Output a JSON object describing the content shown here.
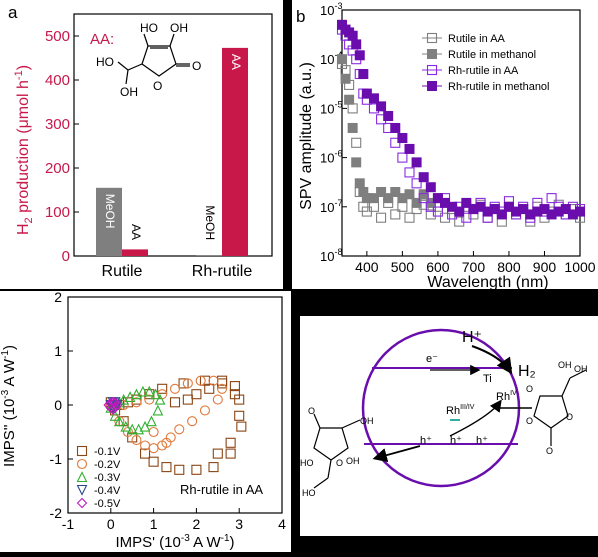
{
  "colors": {
    "rutile_gray": "#7f7f7f",
    "rh_crimson": "#c8184a",
    "purple": "#6a0dad",
    "series_neg01": "#8b4513",
    "series_neg02": "#e0783a",
    "series_neg03": "#2fb02f",
    "series_neg04": "#2a4a8a",
    "series_neg05": "#c018c0"
  },
  "panel_a": {
    "letter": "a",
    "aa_label": "AA:",
    "ylabel_pre": "H",
    "ylabel_sub": "2",
    "ylabel_post": " production (μmol h",
    "ylabel_sup": "-1",
    "ylabel_end": ")",
    "molecule_labels": [
      "HO",
      "OH",
      "HO",
      "OH",
      "O",
      "O"
    ]
  },
  "panel_b": {
    "letter": "b",
    "xlabel": "Wavelength (nm)",
    "ylabel": "SPV amplitude (a.u.)"
  },
  "panel_c": {
    "xlabel_pre": "IMPS' (10",
    "xlabel_sup": "-3",
    "xlabel_post": " A W",
    "xlabel_sup2": "-1",
    "xlabel_end": ")",
    "ylabel_pre": "IMPS'' (10",
    "ylabel_sup": "-3",
    "ylabel_post": " A W",
    "ylabel_sup2": "-1",
    "ylabel_end": ")",
    "annotation": "Rh-rutile in AA"
  },
  "panel_d": {
    "labels": {
      "hplus_top": "H⁺",
      "h2": "H₂",
      "electron": "e⁻",
      "ti": "Ti",
      "rh_mid": "Rh",
      "rh_mid_sup": "III/IV",
      "rh_iv": "Rh",
      "rh_iv_sup": "IV",
      "hole1": "h⁺",
      "hole2": "h⁺",
      "hole3": "h⁺",
      "mol_left": [
        "O",
        "O",
        "OH",
        "OH",
        "HO",
        "HO"
      ],
      "mol_right": [
        "OH",
        "OH",
        "O",
        "O",
        "O",
        "O"
      ]
    }
  },
  "chart_data": [
    {
      "id": "a",
      "type": "bar",
      "categories": [
        "Rutile",
        "Rh-rutile"
      ],
      "series": [
        {
          "name": "MeOH",
          "values": [
            155,
            2
          ]
        },
        {
          "name": "AA",
          "values": [
            15,
            473
          ]
        }
      ],
      "bar_labels": [
        "MeOH",
        "AA",
        "MeOH",
        "AA"
      ],
      "ylim": [
        0,
        550
      ],
      "yticks": [
        0,
        100,
        200,
        300,
        400,
        500
      ]
    },
    {
      "id": "b",
      "type": "scatter",
      "yscale": "log",
      "xlabel": "Wavelength (nm)",
      "ylabel": "SPV amplitude (a.u.)",
      "xlim": [
        330,
        1000
      ],
      "ylim": [
        1e-08,
        0.001
      ],
      "xticks": [
        400,
        500,
        600,
        700,
        800,
        900,
        1000
      ],
      "yticks": [
        1e-08,
        1e-07,
        1e-06,
        1e-05,
        0.0001,
        0.001
      ],
      "ytick_labels": [
        "10-8",
        "10-7",
        "10-6",
        "10-5",
        "10-4",
        "10-3"
      ],
      "legend": "top-right",
      "series": [
        {
          "name": "Rutile in AA",
          "marker": "open-square",
          "color": "#7f7f7f",
          "x": [
            330,
            340,
            350,
            360,
            370,
            380,
            390,
            400,
            420,
            440,
            460,
            480,
            500,
            520,
            540,
            560,
            580,
            600,
            620,
            640,
            660,
            680,
            700,
            720,
            740,
            760,
            780,
            800,
            820,
            840,
            860,
            880,
            900,
            920,
            940,
            960,
            980,
            1000
          ],
          "y": [
            8e-05,
            6e-05,
            3e-05,
            1e-05,
            2e-06,
            2e-07,
            1e-07,
            8e-08,
            1e-07,
            6e-08,
            1.2e-07,
            7e-08,
            1e-07,
            6e-08,
            9e-08,
            1.1e-07,
            7e-08,
            1e-07,
            6e-08,
            9e-08,
            5e-08,
            1e-07,
            7e-08,
            1.1e-07,
            6e-08,
            9e-08,
            5e-08,
            1e-07,
            7e-08,
            9e-08,
            5e-08,
            1e-07,
            6e-08,
            8e-08,
            1.1e-07,
            7e-08,
            9e-08,
            6e-08
          ]
        },
        {
          "name": "Rutile in methanol",
          "marker": "filled-square",
          "color": "#7f7f7f",
          "x": [
            330,
            340,
            350,
            360,
            370,
            380,
            390,
            400,
            420,
            440,
            460,
            480,
            500,
            520,
            540,
            560,
            580,
            600
          ],
          "y": [
            0.0001,
            4e-05,
            1.5e-05,
            4e-06,
            8e-07,
            3e-07,
            2e-07,
            1.5e-07,
            1.5e-07,
            2e-07,
            1.5e-07,
            2e-07,
            1.5e-07,
            1.8e-07,
            1.2e-07,
            1.8e-07,
            1.2e-07,
            1.5e-07
          ]
        },
        {
          "name": "Rh-rutile in AA",
          "marker": "open-square",
          "color": "#8a2be2",
          "x": [
            330,
            340,
            350,
            360,
            370,
            380,
            390,
            400,
            420,
            440,
            460,
            480,
            500,
            520,
            540,
            560,
            580,
            600,
            620,
            640,
            660,
            680,
            700,
            720,
            740,
            760,
            780,
            800,
            820,
            840,
            860,
            880,
            900,
            920,
            940,
            960,
            980,
            1000
          ],
          "y": [
            0.0004,
            0.0003,
            0.0002,
            0.00015,
            0.0001,
            5e-05,
            2e-05,
            1.5e-05,
            1e-05,
            6e-06,
            4e-06,
            2e-06,
            1e-06,
            5e-07,
            3e-07,
            1.5e-07,
            1e-07,
            8e-08,
            1.5e-07,
            7e-08,
            1e-07,
            6e-08,
            9e-08,
            1.2e-07,
            6e-08,
            1e-07,
            8e-08,
            1.3e-07,
            7e-08,
            1e-07,
            6e-08,
            1.2e-07,
            8e-08,
            1.5e-07,
            1e-07,
            7e-08,
            1e-07,
            9e-08
          ]
        },
        {
          "name": "Rh-rutile in methanol",
          "marker": "filled-square",
          "color": "#6a0dad",
          "x": [
            330,
            340,
            350,
            360,
            370,
            380,
            390,
            400,
            420,
            440,
            460,
            480,
            500,
            520,
            540,
            560,
            580,
            600,
            620,
            640,
            660,
            680,
            700,
            720,
            740,
            760,
            780,
            800,
            820,
            840,
            860,
            880,
            900,
            920,
            940,
            960,
            980,
            1000
          ],
          "y": [
            0.0005,
            0.0004,
            0.00035,
            0.0003,
            0.0002,
            0.00012,
            5e-05,
            2e-05,
            1.6e-05,
            1.1e-05,
            7e-06,
            4e-06,
            2.5e-06,
            1.5e-06,
            8e-07,
            4e-07,
            2.5e-07,
            1.5e-07,
            1.2e-07,
            1e-07,
            8e-08,
            1.2e-07,
            9e-08,
            1e-07,
            8e-08,
            9e-08,
            7e-08,
            1e-07,
            8e-08,
            9e-08,
            7e-08,
            8e-08,
            9e-08,
            7e-08,
            8e-08,
            9e-08,
            7e-08,
            8e-08
          ]
        }
      ]
    },
    {
      "id": "c",
      "type": "scatter",
      "xlim": [
        -1,
        4
      ],
      "ylim": [
        -2,
        2
      ],
      "xticks": [
        -1,
        0,
        1,
        2,
        3,
        4
      ],
      "yticks": [
        -2,
        -1,
        0,
        1,
        2
      ],
      "legend": "bottom-left",
      "series": [
        {
          "name": "-0.1V",
          "marker": "square",
          "color": "#8b4513",
          "x": [
            0.0,
            0.1,
            0.3,
            0.5,
            0.8,
            1.0,
            1.3,
            1.6,
            2.0,
            2.4,
            2.8,
            3.05,
            3.0,
            2.9,
            2.6,
            2.2,
            1.7,
            1.2,
            0.9,
            0.6,
            0.4,
            0.2,
            0.1,
            1.5,
            1.8,
            2.0,
            2.3,
            2.6,
            2.9,
            3.0,
            2.8,
            2.5
          ],
          "y": [
            0.05,
            -0.1,
            -0.3,
            -0.6,
            -0.9,
            -1.05,
            -1.15,
            -1.2,
            -1.2,
            -1.15,
            -0.9,
            -0.4,
            0.1,
            0.35,
            0.45,
            0.45,
            0.4,
            0.3,
            0.2,
            0.1,
            0.05,
            0.0,
            0.0,
            0.05,
            0.1,
            0.2,
            0.3,
            0.4,
            0.2,
            -0.2,
            -0.7,
            -0.9
          ]
        },
        {
          "name": "-0.2V",
          "marker": "circle",
          "color": "#e0783a",
          "x": [
            0.0,
            0.2,
            0.4,
            0.6,
            0.8,
            1.0,
            1.2,
            1.4,
            1.6,
            1.9,
            2.2,
            2.5,
            2.6,
            2.4,
            2.1,
            1.8,
            1.5,
            1.2,
            0.9,
            0.6,
            0.3,
            1.0,
            1.3
          ],
          "y": [
            0.0,
            -0.3,
            -0.5,
            -0.65,
            -0.75,
            -0.8,
            -0.75,
            -0.6,
            -0.45,
            -0.3,
            -0.1,
            0.1,
            0.3,
            0.45,
            0.45,
            0.4,
            0.3,
            0.2,
            0.1,
            0.05,
            0.0,
            -0.5,
            -0.7
          ]
        },
        {
          "name": "-0.3V",
          "marker": "triangle-up",
          "color": "#2fb02f",
          "x": [
            0.0,
            0.1,
            0.2,
            0.35,
            0.5,
            0.65,
            0.8,
            0.95,
            1.1,
            1.15,
            1.05,
            0.9,
            0.75,
            0.6,
            0.45,
            0.3,
            0.2,
            0.1
          ],
          "y": [
            -0.05,
            -0.2,
            -0.3,
            -0.4,
            -0.45,
            -0.45,
            -0.4,
            -0.3,
            -0.1,
            0.1,
            0.2,
            0.25,
            0.25,
            0.2,
            0.15,
            0.1,
            0.05,
            0.0
          ]
        },
        {
          "name": "-0.4V",
          "marker": "triangle-down",
          "color": "#2a4a8a",
          "x": [
            0.0,
            0.05,
            0.1,
            0.15,
            0.1,
            0.05
          ],
          "y": [
            0.0,
            -0.05,
            -0.05,
            0.0,
            0.05,
            0.05
          ]
        },
        {
          "name": "-0.5V",
          "marker": "diamond",
          "color": "#c018c0",
          "x": [
            -0.05,
            0.0,
            0.05,
            0.1,
            0.15,
            0.1,
            0.05,
            0.0
          ],
          "y": [
            0.0,
            -0.05,
            -0.08,
            -0.05,
            0.0,
            0.05,
            0.05,
            0.03
          ]
        }
      ]
    }
  ]
}
